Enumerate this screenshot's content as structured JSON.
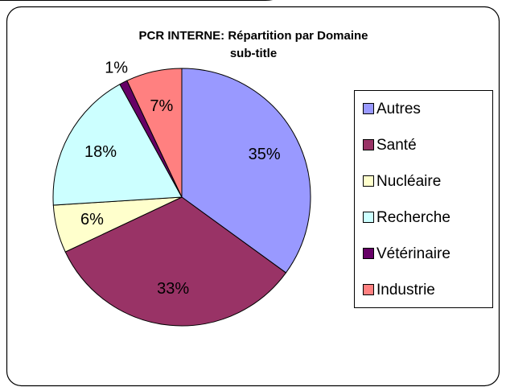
{
  "chart_data": {
    "type": "pie",
    "title": "PCR INTERNE: Répartition par Domaine",
    "subtitle": "sub-title",
    "categories": [
      "Autres",
      "Santé",
      "Nucléaire",
      "Recherche",
      "Vétérinaire",
      "Industrie"
    ],
    "values": [
      35,
      33,
      6,
      18,
      1,
      7
    ],
    "value_labels": [
      "35%",
      "33%",
      "6%",
      "18%",
      "1%",
      "7%"
    ],
    "colors": [
      "#9999ff",
      "#993366",
      "#ffffcc",
      "#ccffff",
      "#660066",
      "#ff8080"
    ],
    "legend": "right"
  }
}
